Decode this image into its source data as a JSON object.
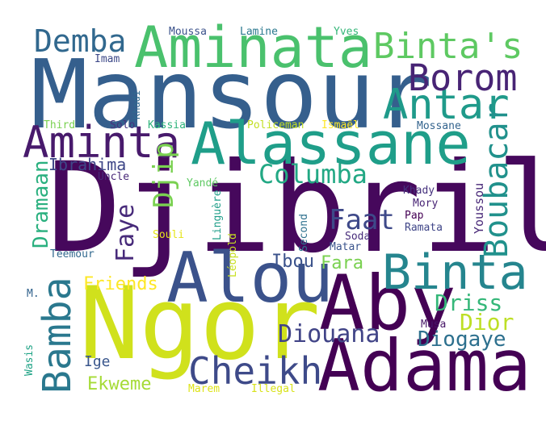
{
  "words": [
    {
      "text": "Djibril",
      "color": "#46085c"
    },
    {
      "text": "Mansour",
      "color": "#355f8d"
    },
    {
      "text": "Ngor",
      "color": "#d0e11c"
    },
    {
      "text": "Aby",
      "color": "#440154"
    },
    {
      "text": "Adama",
      "color": "#440154"
    },
    {
      "text": "Alou",
      "color": "#3b528b"
    },
    {
      "text": "Alassane",
      "color": "#1f9e89"
    },
    {
      "text": "Aminata",
      "color": "#4ac16d"
    },
    {
      "text": "Binta",
      "color": "#25858e"
    },
    {
      "text": "Aminta",
      "color": "#481a6c"
    },
    {
      "text": "Antar",
      "color": "#1f9a8a"
    },
    {
      "text": "Borom",
      "color": "#482475"
    },
    {
      "text": "Binta's",
      "color": "#5ec962"
    },
    {
      "text": "Demba",
      "color": "#31688e"
    },
    {
      "text": "Boubacar",
      "color": "#21918c"
    },
    {
      "text": "Cheikh",
      "color": "#3e4a89"
    },
    {
      "text": "Columba",
      "color": "#22a884"
    },
    {
      "text": "Bamba",
      "color": "#2a788e"
    },
    {
      "text": "Faat",
      "color": "#3e4989"
    },
    {
      "text": "Djip",
      "color": "#7ad151"
    },
    {
      "text": "Faye",
      "color": "#472a7a"
    },
    {
      "text": "Diouana",
      "color": "#414487"
    },
    {
      "text": "Diogaye",
      "color": "#2d708e"
    },
    {
      "text": "Driss",
      "color": "#35b779"
    },
    {
      "text": "Dior",
      "color": "#bddf26"
    },
    {
      "text": "Dramaan",
      "color": "#2ab07f"
    },
    {
      "text": "Ibrahima",
      "color": "#3f4788"
    },
    {
      "text": "Fara",
      "color": "#7ad151"
    },
    {
      "text": "Ibou",
      "color": "#3b528b"
    },
    {
      "text": "Friends",
      "color": "#fde725"
    },
    {
      "text": "Ekweme",
      "color": "#a5db36"
    },
    {
      "text": "Ige",
      "color": "#39568c"
    },
    {
      "text": "Youssou",
      "color": "#482878"
    },
    {
      "text": "Moussa",
      "color": "#3b528b"
    },
    {
      "text": "Lamine",
      "color": "#2a788e"
    },
    {
      "text": "Yves",
      "color": "#35b779"
    },
    {
      "text": "Imam",
      "color": "#3e4a89"
    },
    {
      "text": "Khadi",
      "color": "#31688e"
    },
    {
      "text": "Third",
      "color": "#7ad151"
    },
    {
      "text": "Solo",
      "color": "#46327e"
    },
    {
      "text": "Kassia",
      "color": "#2fb47c"
    },
    {
      "text": "Policeman",
      "color": "#c2df23"
    },
    {
      "text": "Ismaël",
      "color": "#fde725"
    },
    {
      "text": "Mossane",
      "color": "#33638d"
    },
    {
      "text": "Uncle",
      "color": "#482878"
    },
    {
      "text": "Yandé",
      "color": "#5ec962"
    },
    {
      "text": "Linguère",
      "color": "#1f9e89"
    },
    {
      "text": "Second",
      "color": "#2d708e"
    },
    {
      "text": "Khady",
      "color": "#46327e"
    },
    {
      "text": "Mory",
      "color": "#482475"
    },
    {
      "text": "Pap",
      "color": "#440154"
    },
    {
      "text": "Ramata",
      "color": "#404688"
    },
    {
      "text": "Soda",
      "color": "#472c7a"
    },
    {
      "text": "Souli",
      "color": "#e5e419"
    },
    {
      "text": "Léopold",
      "color": "#c8e020"
    },
    {
      "text": "Matar",
      "color": "#3a548c"
    },
    {
      "text": "Teemour",
      "color": "#31688e"
    },
    {
      "text": "M.",
      "color": "#33638d"
    },
    {
      "text": "Musa",
      "color": "#481769"
    },
    {
      "text": "Wasis",
      "color": "#20a386"
    },
    {
      "text": "Marem",
      "color": "#dde318"
    },
    {
      "text": "Illegal",
      "color": "#d8e219"
    }
  ]
}
